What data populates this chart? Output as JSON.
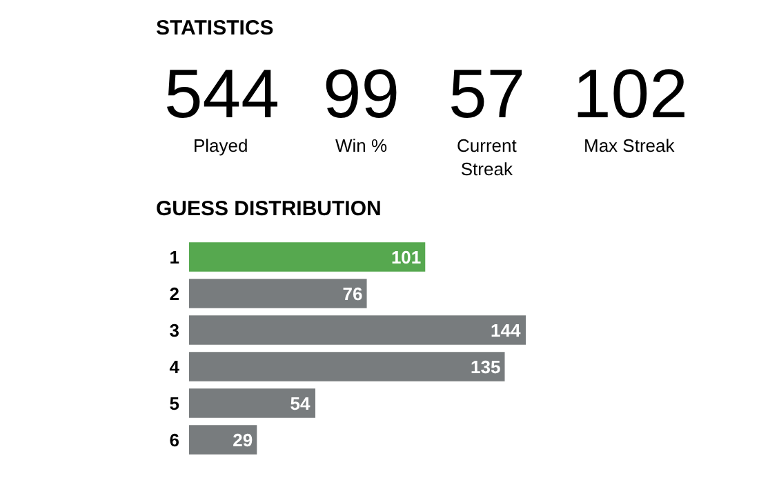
{
  "chart_data": [
    {
      "type": "other",
      "title": "STATISTICS",
      "categories": [
        "Played",
        "Win %",
        "Current Streak",
        "Max Streak"
      ],
      "values": [
        544,
        99,
        57,
        102
      ],
      "data_labels": true
    },
    {
      "type": "bar",
      "orientation": "horizontal",
      "title": "GUESS DISTRIBUTION",
      "categories": [
        "1",
        "2",
        "3",
        "4",
        "5",
        "6"
      ],
      "values": [
        101,
        76,
        144,
        135,
        54,
        29
      ],
      "colors": [
        "#56a84f",
        "#787c7e",
        "#787c7e",
        "#787c7e",
        "#787c7e",
        "#787c7e"
      ],
      "data_labels": true
    }
  ]
}
